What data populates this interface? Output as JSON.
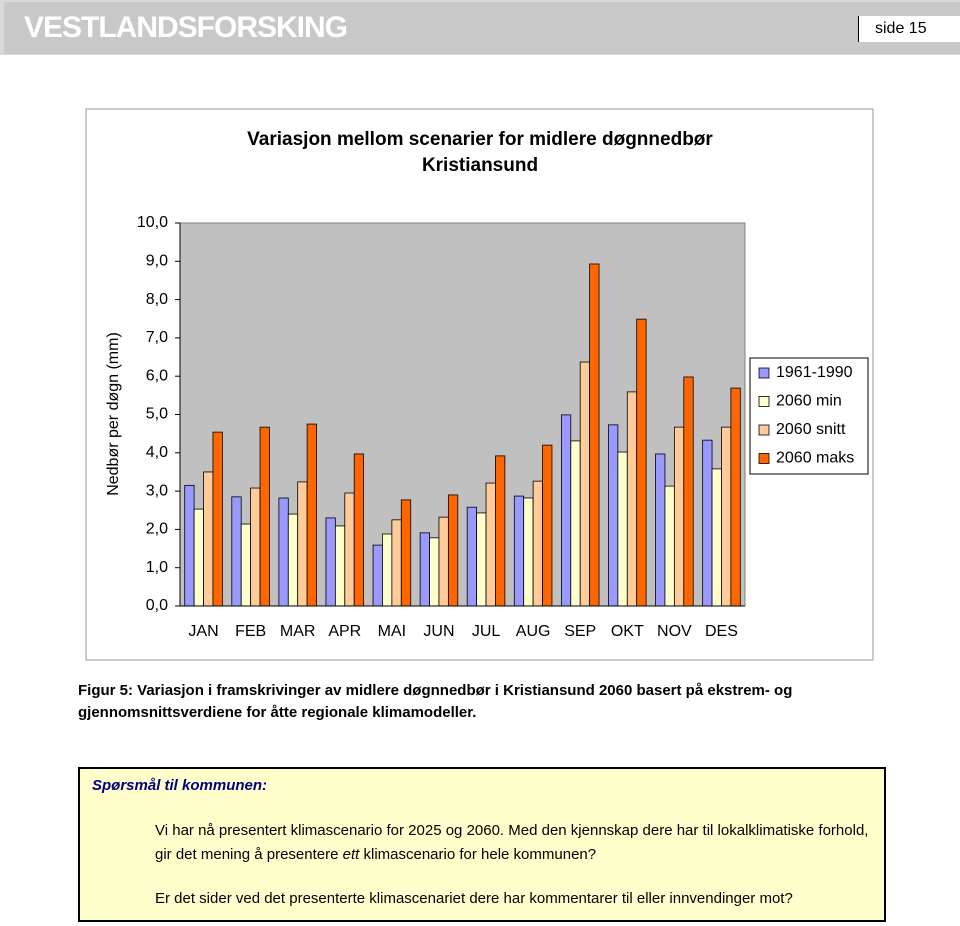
{
  "header": {
    "logo": "VESTLANDSFORSKING",
    "page": "side 15"
  },
  "chart_data": {
    "type": "bar",
    "title": "Variasjon mellom scenarier for midlere døgnnedbør",
    "subtitle": "Kristiansund",
    "y_label": "Nedbør per døgn (mm)",
    "categories": [
      "JAN",
      "FEB",
      "MAR",
      "APR",
      "MAI",
      "JUN",
      "JUL",
      "AUG",
      "SEP",
      "OKT",
      "NOV",
      "DES"
    ],
    "series": [
      {
        "name": "1961-1990",
        "color": "#9999ff",
        "values": [
          3.15,
          2.85,
          2.82,
          2.3,
          1.59,
          1.91,
          2.58,
          2.87,
          4.99,
          4.73,
          3.97,
          4.33
        ]
      },
      {
        "name": "2060 min",
        "color": "#ffffcc",
        "values": [
          2.53,
          2.14,
          2.4,
          2.09,
          1.88,
          1.78,
          2.43,
          2.82,
          4.31,
          4.02,
          3.13,
          3.58
        ]
      },
      {
        "name": "2060 snitt",
        "color": "#ffcc99",
        "values": [
          3.5,
          3.08,
          3.24,
          2.95,
          2.25,
          2.32,
          3.21,
          3.26,
          6.37,
          5.59,
          4.67,
          4.67
        ]
      },
      {
        "name": "2060 maks",
        "color": "#ff6600",
        "values": [
          4.54,
          4.67,
          4.75,
          3.97,
          2.77,
          2.9,
          3.92,
          4.2,
          8.93,
          7.49,
          5.98,
          5.69
        ]
      }
    ],
    "ylim": [
      0,
      10
    ],
    "yticks": [
      {
        "value": 0,
        "label": "0,0"
      },
      {
        "value": 1,
        "label": "1,0"
      },
      {
        "value": 2,
        "label": "2,0"
      },
      {
        "value": 3,
        "label": "3,0"
      },
      {
        "value": 4,
        "label": "4,0"
      },
      {
        "value": 5,
        "label": "5,0"
      },
      {
        "value": 6,
        "label": "6,0"
      },
      {
        "value": 7,
        "label": "7,0"
      },
      {
        "value": 8,
        "label": "8,0"
      },
      {
        "value": 9,
        "label": "9,0"
      },
      {
        "value": 10,
        "label": "10,0"
      }
    ],
    "grid": false,
    "legend": "right",
    "plot_background": "#c0c0c0"
  },
  "caption": "Figur 5: Variasjon i framskrivinger av midlere døgnnedbør i Kristiansund 2060 basert på ekstrem- og gjennomsnittsverdiene for åtte regionale klimamodeller.",
  "box": {
    "title": "Spørsmål til kommunen:",
    "paragraph1": [
      "Vi har nå presentert klimascenario for 2025 og 2060. Med den kjennskap dere har til lokalklimatiske forhold, gir det mening å presentere ",
      "ett",
      " klimascenario for hele kommunen?"
    ],
    "paragraph2": "Er det sider ved det presenterte klimascenariet dere har kommentarer til eller innvendinger mot?"
  }
}
